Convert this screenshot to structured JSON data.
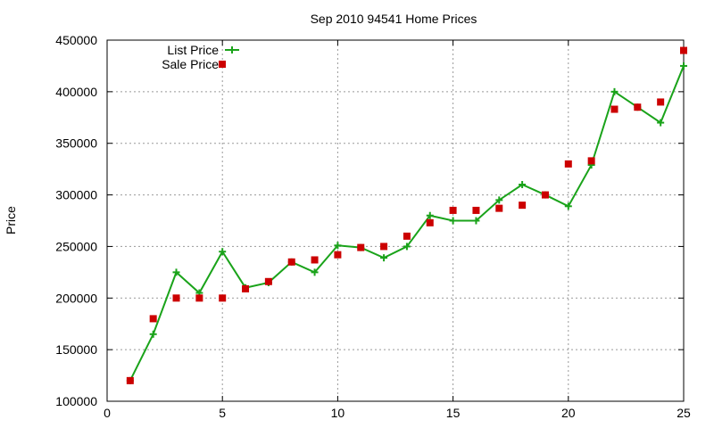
{
  "chart_data": {
    "type": "line",
    "title": "Sep 2010 94541 Home Prices",
    "xlabel": "",
    "ylabel": "Price",
    "xlim": [
      0,
      25
    ],
    "ylim": [
      100000,
      450000
    ],
    "xticks": [
      "0",
      "5",
      "10",
      "15",
      "20",
      "25"
    ],
    "yticks": [
      "100000",
      "150000",
      "200000",
      "250000",
      "300000",
      "350000",
      "400000",
      "450000"
    ],
    "grid": true,
    "legend_position": "top-left",
    "series": [
      {
        "name": "List Price",
        "style": "line-with-plus-markers",
        "color": "#1aa31a",
        "x": [
          1,
          2,
          3,
          4,
          5,
          6,
          7,
          8,
          9,
          10,
          11,
          12,
          13,
          14,
          15,
          16,
          17,
          18,
          19,
          20,
          21,
          22,
          23,
          24,
          25
        ],
        "values": [
          120000,
          165000,
          225000,
          205000,
          245000,
          210000,
          215000,
          235000,
          225000,
          251000,
          249000,
          239000,
          250000,
          280000,
          275000,
          275000,
          295000,
          310000,
          300000,
          289000,
          329000,
          400000,
          385000,
          370000,
          425000
        ]
      },
      {
        "name": "Sale Price",
        "style": "square-markers",
        "color": "#cc0000",
        "x": [
          1,
          2,
          3,
          4,
          5,
          6,
          7,
          8,
          9,
          10,
          11,
          12,
          13,
          14,
          15,
          16,
          17,
          18,
          19,
          20,
          21,
          22,
          23,
          24,
          25
        ],
        "values": [
          120000,
          180000,
          200000,
          200000,
          200000,
          209000,
          216000,
          235000,
          237000,
          242000,
          249000,
          250000,
          260000,
          273000,
          285000,
          285000,
          287000,
          290000,
          300000,
          330000,
          333000,
          383000,
          385000,
          390000,
          440000
        ]
      }
    ]
  }
}
